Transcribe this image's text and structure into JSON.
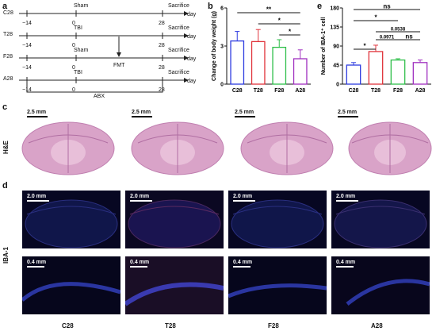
{
  "panels": {
    "a": "a",
    "b": "b",
    "c": "c",
    "d": "d",
    "e": "e"
  },
  "timeline": {
    "rows": [
      {
        "group": "C28",
        "treatment": "Sham",
        "end_label": "Sacrifice",
        "extra": ""
      },
      {
        "group": "T28",
        "treatment": "TBI",
        "end_label": "Sacrifice",
        "extra": ""
      },
      {
        "group": "F28",
        "treatment": "Sham",
        "end_label": "Sacrifice",
        "extra": "FMT"
      },
      {
        "group": "A28",
        "treatment": "TBI",
        "end_label": "Sacrifice",
        "extra": ""
      }
    ],
    "ticks": [
      "−14",
      "0",
      "28"
    ],
    "unit": "day",
    "abx_label": "ABX"
  },
  "chart_data": [
    {
      "type": "bar",
      "panel": "b",
      "categories": [
        "C28",
        "T28",
        "F28",
        "A28"
      ],
      "values": [
        3.4,
        3.35,
        2.9,
        2.0
      ],
      "errors": [
        0.75,
        0.95,
        0.6,
        0.7
      ],
      "colors": [
        "#2d3be0",
        "#e0333b",
        "#2fbf4a",
        "#a030c0"
      ],
      "ylabel": "Change of body weight (g)",
      "ylim": [
        0,
        6
      ],
      "yticks": [
        "0",
        "3",
        "6"
      ],
      "significance": [
        {
          "from": "C28",
          "to": "A28",
          "label": "**"
        },
        {
          "from": "T28",
          "to": "A28",
          "label": "*"
        },
        {
          "from": "F28",
          "to": "A28",
          "label": "*"
        }
      ]
    },
    {
      "type": "bar",
      "panel": "e",
      "categories": [
        "C28",
        "T28",
        "F28",
        "A28"
      ],
      "values": [
        45,
        77,
        57,
        51
      ],
      "errors": [
        6,
        15,
        3,
        6
      ],
      "colors": [
        "#2d3be0",
        "#e0333b",
        "#2fbf4a",
        "#a030c0"
      ],
      "ylabel": "Number of IBA-1⁺ cell",
      "ylim": [
        0,
        180
      ],
      "yticks": [
        "0",
        "45",
        "90",
        "135",
        "180"
      ],
      "significance": [
        {
          "from": "C28",
          "to": "A28",
          "label": "ns"
        },
        {
          "from": "C28",
          "to": "F28",
          "label": "*"
        },
        {
          "from": "T28",
          "to": "A28",
          "label": "0.0538"
        },
        {
          "from": "T28",
          "to": "F28",
          "label": "0.0971"
        },
        {
          "from": "F28",
          "to": "A28",
          "label": "ns"
        },
        {
          "from": "C28",
          "to": "T28",
          "label": "*"
        }
      ]
    }
  ],
  "he": {
    "row_label": "H&E",
    "scale_labels": [
      "2.5 mm",
      "2.5 mm",
      "2.5 mm",
      "2.5 mm"
    ]
  },
  "ihc": {
    "row_label": "IBA-1",
    "top_scale": [
      "2.0 mm",
      "2.0 mm",
      "2.0 mm",
      "2.0 mm"
    ],
    "bottom_scale": [
      "0.4 mm",
      "0.4 mm",
      "0.4 mm",
      "0.4 mm"
    ],
    "groups": [
      "C28",
      "T28",
      "F28",
      "A28"
    ]
  }
}
